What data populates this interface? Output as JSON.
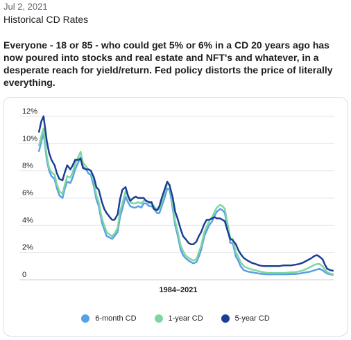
{
  "post": {
    "date": "Jul 2, 2021",
    "title": "Historical CD Rates",
    "body": "Everyone - 18 or 85 - who could get 5% or 6% in a CD 20 years ago has now poured into stocks and real estate and NFT's and whatever, in a desperate reach for yield/return. Fed policy distorts the price of literally everything."
  },
  "chart_data": {
    "type": "line",
    "title": "",
    "xlabel": "1984–2021",
    "ylabel": "",
    "xlim": [
      1984,
      2021.5
    ],
    "ylim": [
      0,
      12
    ],
    "y_ticks": [
      {
        "value": 0,
        "label": "0"
      },
      {
        "value": 2,
        "label": "2%"
      },
      {
        "value": 4,
        "label": "4%"
      },
      {
        "value": 6,
        "label": "6%"
      },
      {
        "value": 8,
        "label": "8%"
      },
      {
        "value": 10,
        "label": "10%"
      },
      {
        "value": 12,
        "label": "12%"
      }
    ],
    "grid": true,
    "legend_position": "bottom",
    "series": [
      {
        "name": "6-month CD",
        "color": "#5aa0e6",
        "x": [
          1984.0,
          1984.3,
          1984.6,
          1985.0,
          1985.3,
          1985.6,
          1986.0,
          1986.3,
          1986.6,
          1987.0,
          1987.3,
          1987.6,
          1988.0,
          1988.3,
          1988.6,
          1989.0,
          1989.3,
          1989.6,
          1990.0,
          1990.3,
          1990.6,
          1991.0,
          1991.3,
          1991.6,
          1992.0,
          1992.3,
          1992.6,
          1993.0,
          1993.3,
          1993.6,
          1994.0,
          1994.3,
          1994.6,
          1995.0,
          1995.3,
          1995.6,
          1996.0,
          1996.3,
          1996.6,
          1997.0,
          1997.3,
          1997.6,
          1998.0,
          1998.3,
          1998.6,
          1999.0,
          1999.3,
          1999.6,
          2000.0,
          2000.3,
          2000.6,
          2001.0,
          2001.3,
          2001.6,
          2002.0,
          2002.3,
          2002.6,
          2003.0,
          2003.3,
          2003.6,
          2004.0,
          2004.3,
          2004.6,
          2005.0,
          2005.3,
          2005.6,
          2006.0,
          2006.3,
          2006.6,
          2007.0,
          2007.3,
          2007.6,
          2008.0,
          2008.3,
          2008.6,
          2009.0,
          2009.3,
          2009.6,
          2010.0,
          2010.5,
          2011.0,
          2011.5,
          2012.0,
          2012.5,
          2013.0,
          2013.5,
          2014.0,
          2014.5,
          2015.0,
          2015.5,
          2016.0,
          2016.5,
          2017.0,
          2017.5,
          2018.0,
          2018.5,
          2019.0,
          2019.3,
          2019.6,
          2020.0,
          2020.3,
          2020.6,
          2021.0,
          2021.4
        ],
        "y": [
          9.2,
          9.9,
          10.6,
          8.6,
          7.8,
          7.4,
          7.2,
          6.5,
          6.0,
          5.8,
          6.5,
          7.0,
          6.9,
          7.3,
          7.9,
          8.4,
          8.8,
          8.1,
          7.9,
          7.6,
          7.5,
          6.6,
          5.7,
          5.2,
          4.0,
          3.5,
          3.0,
          2.9,
          2.8,
          3.0,
          3.3,
          4.4,
          5.0,
          5.9,
          5.5,
          5.2,
          5.1,
          5.1,
          5.2,
          5.1,
          5.4,
          5.4,
          5.2,
          5.2,
          5.0,
          4.7,
          4.7,
          5.2,
          5.9,
          6.5,
          6.4,
          5.0,
          3.8,
          3.1,
          2.0,
          1.6,
          1.4,
          1.2,
          1.1,
          1.0,
          1.1,
          1.5,
          2.0,
          3.0,
          3.4,
          3.8,
          4.1,
          4.5,
          4.8,
          5.0,
          4.9,
          4.7,
          3.5,
          2.5,
          2.5,
          1.5,
          1.2,
          0.8,
          0.5,
          0.4,
          0.35,
          0.3,
          0.25,
          0.22,
          0.2,
          0.2,
          0.2,
          0.2,
          0.2,
          0.2,
          0.22,
          0.22,
          0.25,
          0.3,
          0.35,
          0.4,
          0.5,
          0.55,
          0.6,
          0.5,
          0.35,
          0.25,
          0.2,
          0.15
        ]
      },
      {
        "name": "1-year CD",
        "color": "#7ed6a0",
        "x": [
          1984.0,
          1984.3,
          1984.6,
          1985.0,
          1985.3,
          1985.6,
          1986.0,
          1986.3,
          1986.6,
          1987.0,
          1987.3,
          1987.6,
          1988.0,
          1988.3,
          1988.6,
          1989.0,
          1989.3,
          1989.6,
          1990.0,
          1990.3,
          1990.6,
          1991.0,
          1991.3,
          1991.6,
          1992.0,
          1992.3,
          1992.6,
          1993.0,
          1993.3,
          1993.6,
          1994.0,
          1994.3,
          1994.6,
          1995.0,
          1995.3,
          1995.6,
          1996.0,
          1996.3,
          1996.6,
          1997.0,
          1997.3,
          1997.6,
          1998.0,
          1998.3,
          1998.6,
          1999.0,
          1999.3,
          1999.6,
          2000.0,
          2000.3,
          2000.6,
          2001.0,
          2001.3,
          2001.6,
          2002.0,
          2002.3,
          2002.6,
          2003.0,
          2003.3,
          2003.6,
          2004.0,
          2004.3,
          2004.6,
          2005.0,
          2005.3,
          2005.6,
          2006.0,
          2006.3,
          2006.6,
          2007.0,
          2007.3,
          2007.6,
          2008.0,
          2008.3,
          2008.6,
          2009.0,
          2009.3,
          2009.6,
          2010.0,
          2010.5,
          2011.0,
          2011.5,
          2012.0,
          2012.5,
          2013.0,
          2013.5,
          2014.0,
          2014.5,
          2015.0,
          2015.5,
          2016.0,
          2016.5,
          2017.0,
          2017.5,
          2018.0,
          2018.5,
          2019.0,
          2019.3,
          2019.6,
          2020.0,
          2020.3,
          2020.6,
          2021.0,
          2021.4
        ],
        "y": [
          9.6,
          10.3,
          10.9,
          8.9,
          8.0,
          7.7,
          7.5,
          6.8,
          6.3,
          6.1,
          6.8,
          7.4,
          7.3,
          7.7,
          8.3,
          8.8,
          9.2,
          8.4,
          8.1,
          7.9,
          7.8,
          7.0,
          6.0,
          5.5,
          4.3,
          3.8,
          3.3,
          3.1,
          3.0,
          3.2,
          3.6,
          4.8,
          5.4,
          6.3,
          5.9,
          5.5,
          5.4,
          5.4,
          5.5,
          5.4,
          5.6,
          5.6,
          5.4,
          5.4,
          5.2,
          4.9,
          5.0,
          5.5,
          6.3,
          6.9,
          6.8,
          5.3,
          4.1,
          3.4,
          2.3,
          1.9,
          1.6,
          1.4,
          1.3,
          1.2,
          1.3,
          1.8,
          2.3,
          3.3,
          3.7,
          4.1,
          4.4,
          4.8,
          5.1,
          5.3,
          5.2,
          5.0,
          3.8,
          2.8,
          2.8,
          1.8,
          1.5,
          1.1,
          0.8,
          0.65,
          0.55,
          0.5,
          0.4,
          0.35,
          0.3,
          0.3,
          0.3,
          0.3,
          0.3,
          0.32,
          0.35,
          0.35,
          0.4,
          0.48,
          0.6,
          0.75,
          0.9,
          0.95,
          0.95,
          0.8,
          0.55,
          0.35,
          0.25,
          0.2
        ]
      },
      {
        "name": "5-year CD",
        "color": "#1c3f95",
        "x": [
          1984.0,
          1984.3,
          1984.6,
          1985.0,
          1985.3,
          1985.6,
          1986.0,
          1986.3,
          1986.6,
          1987.0,
          1987.3,
          1987.6,
          1988.0,
          1988.3,
          1988.6,
          1989.0,
          1989.3,
          1989.6,
          1990.0,
          1990.3,
          1990.6,
          1991.0,
          1991.3,
          1991.6,
          1992.0,
          1992.3,
          1992.6,
          1993.0,
          1993.3,
          1993.6,
          1994.0,
          1994.3,
          1994.6,
          1995.0,
          1995.3,
          1995.6,
          1996.0,
          1996.3,
          1996.6,
          1997.0,
          1997.3,
          1997.6,
          1998.0,
          1998.3,
          1998.6,
          1999.0,
          1999.3,
          1999.6,
          2000.0,
          2000.3,
          2000.6,
          2001.0,
          2001.3,
          2001.6,
          2002.0,
          2002.3,
          2002.6,
          2003.0,
          2003.3,
          2003.6,
          2004.0,
          2004.3,
          2004.6,
          2005.0,
          2005.3,
          2005.6,
          2006.0,
          2006.3,
          2006.6,
          2007.0,
          2007.3,
          2007.6,
          2008.0,
          2008.3,
          2008.6,
          2009.0,
          2009.3,
          2009.6,
          2010.0,
          2010.5,
          2011.0,
          2011.5,
          2012.0,
          2012.5,
          2013.0,
          2013.5,
          2014.0,
          2014.5,
          2015.0,
          2015.5,
          2016.0,
          2016.5,
          2017.0,
          2017.5,
          2018.0,
          2018.5,
          2019.0,
          2019.3,
          2019.6,
          2020.0,
          2020.3,
          2020.6,
          2021.0,
          2021.4
        ],
        "y": [
          10.6,
          11.4,
          11.8,
          10.0,
          9.1,
          8.6,
          8.2,
          7.6,
          7.2,
          7.1,
          7.7,
          8.2,
          7.9,
          8.2,
          8.6,
          8.6,
          8.7,
          8.0,
          7.9,
          7.9,
          7.8,
          7.3,
          6.6,
          6.4,
          5.5,
          5.0,
          4.7,
          4.4,
          4.2,
          4.2,
          4.6,
          5.7,
          6.4,
          6.6,
          6.0,
          5.6,
          5.8,
          5.9,
          5.8,
          5.8,
          5.8,
          5.6,
          5.5,
          5.5,
          5.0,
          4.9,
          5.2,
          5.8,
          6.5,
          7.0,
          6.7,
          5.8,
          4.8,
          4.3,
          3.5,
          3.0,
          2.8,
          2.5,
          2.4,
          2.4,
          2.6,
          3.0,
          3.3,
          3.9,
          4.2,
          4.2,
          4.3,
          4.4,
          4.3,
          4.3,
          4.2,
          4.1,
          3.3,
          2.8,
          2.7,
          2.4,
          2.0,
          1.7,
          1.4,
          1.2,
          1.05,
          0.95,
          0.85,
          0.8,
          0.8,
          0.8,
          0.8,
          0.8,
          0.85,
          0.85,
          0.85,
          0.9,
          0.95,
          1.05,
          1.2,
          1.35,
          1.55,
          1.6,
          1.5,
          1.3,
          0.9,
          0.6,
          0.5,
          0.45
        ]
      }
    ]
  }
}
